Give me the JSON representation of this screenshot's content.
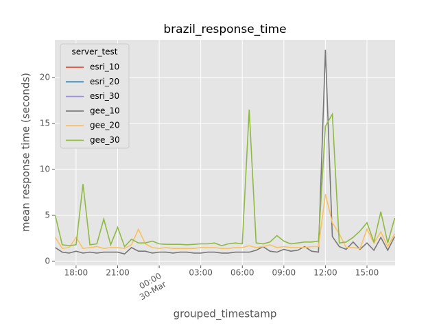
{
  "chart_data": {
    "type": "line",
    "title": "brazil_response_time",
    "xlabel": "grouped_timestamp",
    "ylabel": "mean response time (seconds)",
    "x": [
      -7.5,
      -7,
      -6.5,
      -6,
      -5.5,
      -5,
      -4.5,
      -4,
      -3.5,
      -3,
      -2.5,
      -2,
      -1.5,
      -1,
      -0.5,
      0,
      0.5,
      1,
      1.5,
      2,
      2.5,
      3,
      3.5,
      4,
      4.5,
      5,
      5.5,
      6,
      6.5,
      7,
      7.5,
      8,
      8.5,
      9,
      9.5,
      10,
      10.5,
      11,
      11.5,
      12,
      12.5,
      13,
      13.5,
      14,
      14.5,
      15,
      15.5,
      16,
      16.5,
      17
    ],
    "xlim": [
      -7.53,
      17.03
    ],
    "xticks": [
      {
        "value": -6,
        "label": "18:00"
      },
      {
        "value": -3,
        "label": "21:00"
      },
      {
        "value": 0,
        "label": "00:00\n30-Mar"
      },
      {
        "value": 3,
        "label": "03:00"
      },
      {
        "value": 6,
        "label": "06:00"
      },
      {
        "value": 9,
        "label": "09:00"
      },
      {
        "value": 12,
        "label": "12:00"
      },
      {
        "value": 15,
        "label": "15:00"
      }
    ],
    "ylim": [
      -0.45,
      24.1
    ],
    "yticks": [
      0,
      5,
      10,
      15,
      20
    ],
    "grid": true,
    "legend": {
      "title": "server_test",
      "position": "upper left"
    },
    "series": [
      {
        "name": "esri_10",
        "color": "#E24A33",
        "values": [
          null,
          null,
          null,
          null,
          null,
          null,
          null,
          null,
          null,
          null,
          null,
          null,
          null,
          null,
          null,
          null,
          null,
          null,
          null,
          null,
          null,
          null,
          null,
          null,
          null,
          null,
          null,
          null,
          null,
          null,
          null,
          null,
          null,
          null,
          null,
          null,
          null,
          null,
          null,
          null,
          null,
          null,
          null,
          null,
          null,
          null,
          null,
          null,
          null,
          null
        ]
      },
      {
        "name": "esri_20",
        "color": "#348ABD",
        "values": [
          null,
          null,
          null,
          null,
          null,
          null,
          null,
          null,
          null,
          null,
          null,
          null,
          null,
          null,
          null,
          null,
          null,
          null,
          null,
          null,
          null,
          null,
          null,
          null,
          null,
          null,
          null,
          null,
          null,
          null,
          null,
          null,
          null,
          null,
          null,
          null,
          null,
          null,
          null,
          null,
          null,
          null,
          null,
          null,
          null,
          null,
          null,
          null,
          null,
          null
        ]
      },
      {
        "name": "esri_30",
        "color": "#988ED5",
        "values": [
          null,
          null,
          null,
          null,
          null,
          null,
          null,
          null,
          null,
          null,
          null,
          null,
          null,
          null,
          null,
          null,
          null,
          null,
          null,
          null,
          null,
          null,
          null,
          null,
          null,
          null,
          null,
          null,
          null,
          null,
          null,
          null,
          null,
          null,
          null,
          null,
          null,
          null,
          null,
          null,
          null,
          null,
          null,
          null,
          null,
          null,
          null,
          null,
          null,
          null
        ]
      },
      {
        "name": "gee_10",
        "color": "#777777",
        "values": [
          1.5,
          1.0,
          0.9,
          1.1,
          0.9,
          1.0,
          0.9,
          1.0,
          1.0,
          1.0,
          0.8,
          1.5,
          1.1,
          1.1,
          0.9,
          1.0,
          1.0,
          0.9,
          1.0,
          1.0,
          0.9,
          0.9,
          1.0,
          1.0,
          0.9,
          0.9,
          1.0,
          1.0,
          1.0,
          1.2,
          1.6,
          1.1,
          1.0,
          1.3,
          1.1,
          1.2,
          1.6,
          1.1,
          1.0,
          23.0,
          2.7,
          1.6,
          1.3,
          2.1,
          1.3,
          2.0,
          1.2,
          2.6,
          1.2,
          2.7
        ]
      },
      {
        "name": "gee_20",
        "color": "#FBC15E",
        "values": [
          2.6,
          1.4,
          1.5,
          2.6,
          1.4,
          1.5,
          1.6,
          1.4,
          1.5,
          1.5,
          1.4,
          1.8,
          3.5,
          1.9,
          1.5,
          1.4,
          1.5,
          1.4,
          1.4,
          1.4,
          1.4,
          1.5,
          1.5,
          1.5,
          1.4,
          1.4,
          1.5,
          1.5,
          1.7,
          1.5,
          1.6,
          1.8,
          1.5,
          1.6,
          1.5,
          1.5,
          1.5,
          1.6,
          1.6,
          7.3,
          4.2,
          3.0,
          1.5,
          1.5,
          1.4,
          3.5,
          2.0,
          3.2,
          1.6,
          3.0
        ]
      },
      {
        "name": "gee_30",
        "color": "#8EBA42",
        "values": [
          5.0,
          1.8,
          1.7,
          1.8,
          8.4,
          1.8,
          1.9,
          4.6,
          1.8,
          3.7,
          1.6,
          2.4,
          2.0,
          2.0,
          2.2,
          1.9,
          1.85,
          1.85,
          1.85,
          1.8,
          1.85,
          1.9,
          1.9,
          2.0,
          1.7,
          1.9,
          2.0,
          1.9,
          16.5,
          2.0,
          1.9,
          2.1,
          2.8,
          2.2,
          1.9,
          2.0,
          2.1,
          2.1,
          2.2,
          14.7,
          16.0,
          2.0,
          2.1,
          2.6,
          3.3,
          4.2,
          2.1,
          5.4,
          2.0,
          4.7
        ]
      }
    ]
  }
}
